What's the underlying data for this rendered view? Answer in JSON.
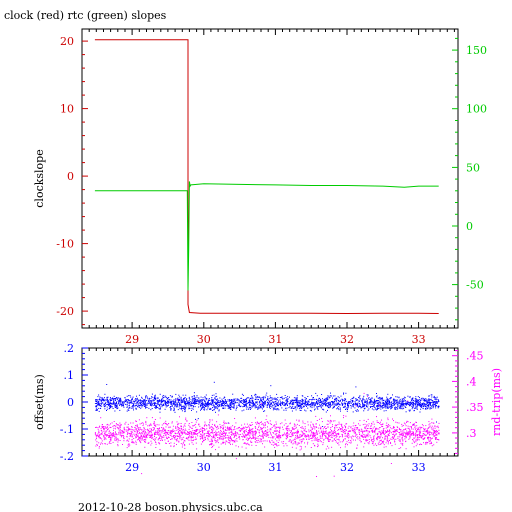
{
  "title": "clock (red) rtc (green) slopes",
  "footer": "2012-10-28  boson.physics.ubc.ca",
  "colors": {
    "clock": "#cc0000",
    "rtc": "#00cc00",
    "offset": "#0000ff",
    "rnd_trip": "#ff00ff",
    "axis": "#000000"
  },
  "chart_data": [
    {
      "type": "line",
      "xlabel": "",
      "ylabel": "clockslope",
      "y2label": "",
      "xlim": [
        28.3,
        33.55
      ],
      "ylim": [
        -22.5,
        21.8
      ],
      "y2lim": [
        -87,
        168
      ],
      "xticks": [
        29,
        30,
        31,
        32,
        33
      ],
      "yticks": [
        20,
        10,
        0,
        -10,
        -20
      ],
      "y2ticks": [
        150,
        100,
        50,
        0,
        -50
      ],
      "grid": false,
      "series": [
        {
          "color": "red",
          "axis": "left",
          "x": [
            28.48,
            29.78,
            29.78,
            29.8,
            29.95,
            30.5,
            31.0,
            31.5,
            32.0,
            32.5,
            33.0,
            33.28
          ],
          "y": [
            20.2,
            20.2,
            -19.0,
            -20.2,
            -20.3,
            -20.3,
            -20.3,
            -20.3,
            -20.35,
            -20.3,
            -20.3,
            -20.35
          ]
        },
        {
          "color": "green",
          "axis": "right",
          "x": [
            28.48,
            29.0,
            29.5,
            29.77,
            29.78,
            29.79,
            29.8,
            29.81,
            29.82,
            30.0,
            30.5,
            31.0,
            31.5,
            32.0,
            32.5,
            32.8,
            33.0,
            33.28
          ],
          "y": [
            30,
            30,
            30,
            30,
            -55,
            -20,
            38,
            34,
            35,
            36,
            35.5,
            35,
            34.5,
            34.5,
            34,
            33,
            34,
            34
          ]
        }
      ]
    },
    {
      "type": "scatter",
      "xlabel": "",
      "ylabel": "offset(ms)",
      "y2label": "rnd-trip(ms)",
      "xlim": [
        28.3,
        33.55
      ],
      "ylim": [
        -0.2,
        0.2
      ],
      "y2lim": [
        0.255,
        0.465
      ],
      "xticks": [
        29,
        30,
        31,
        32,
        33
      ],
      "yticks": [
        0.2,
        0.1,
        0,
        -0.1,
        -0.2
      ],
      "y2ticks": [
        0.45,
        0.4,
        0.35,
        0.3
      ],
      "grid": false,
      "series": [
        {
          "color": "blue",
          "axis": "left",
          "x_range": [
            28.48,
            33.28
          ],
          "center": -0.002,
          "spread": 0.013
        },
        {
          "color": "magenta",
          "axis": "right",
          "x_range": [
            28.48,
            33.28
          ],
          "center": 0.3,
          "spread": 0.012
        }
      ]
    }
  ]
}
